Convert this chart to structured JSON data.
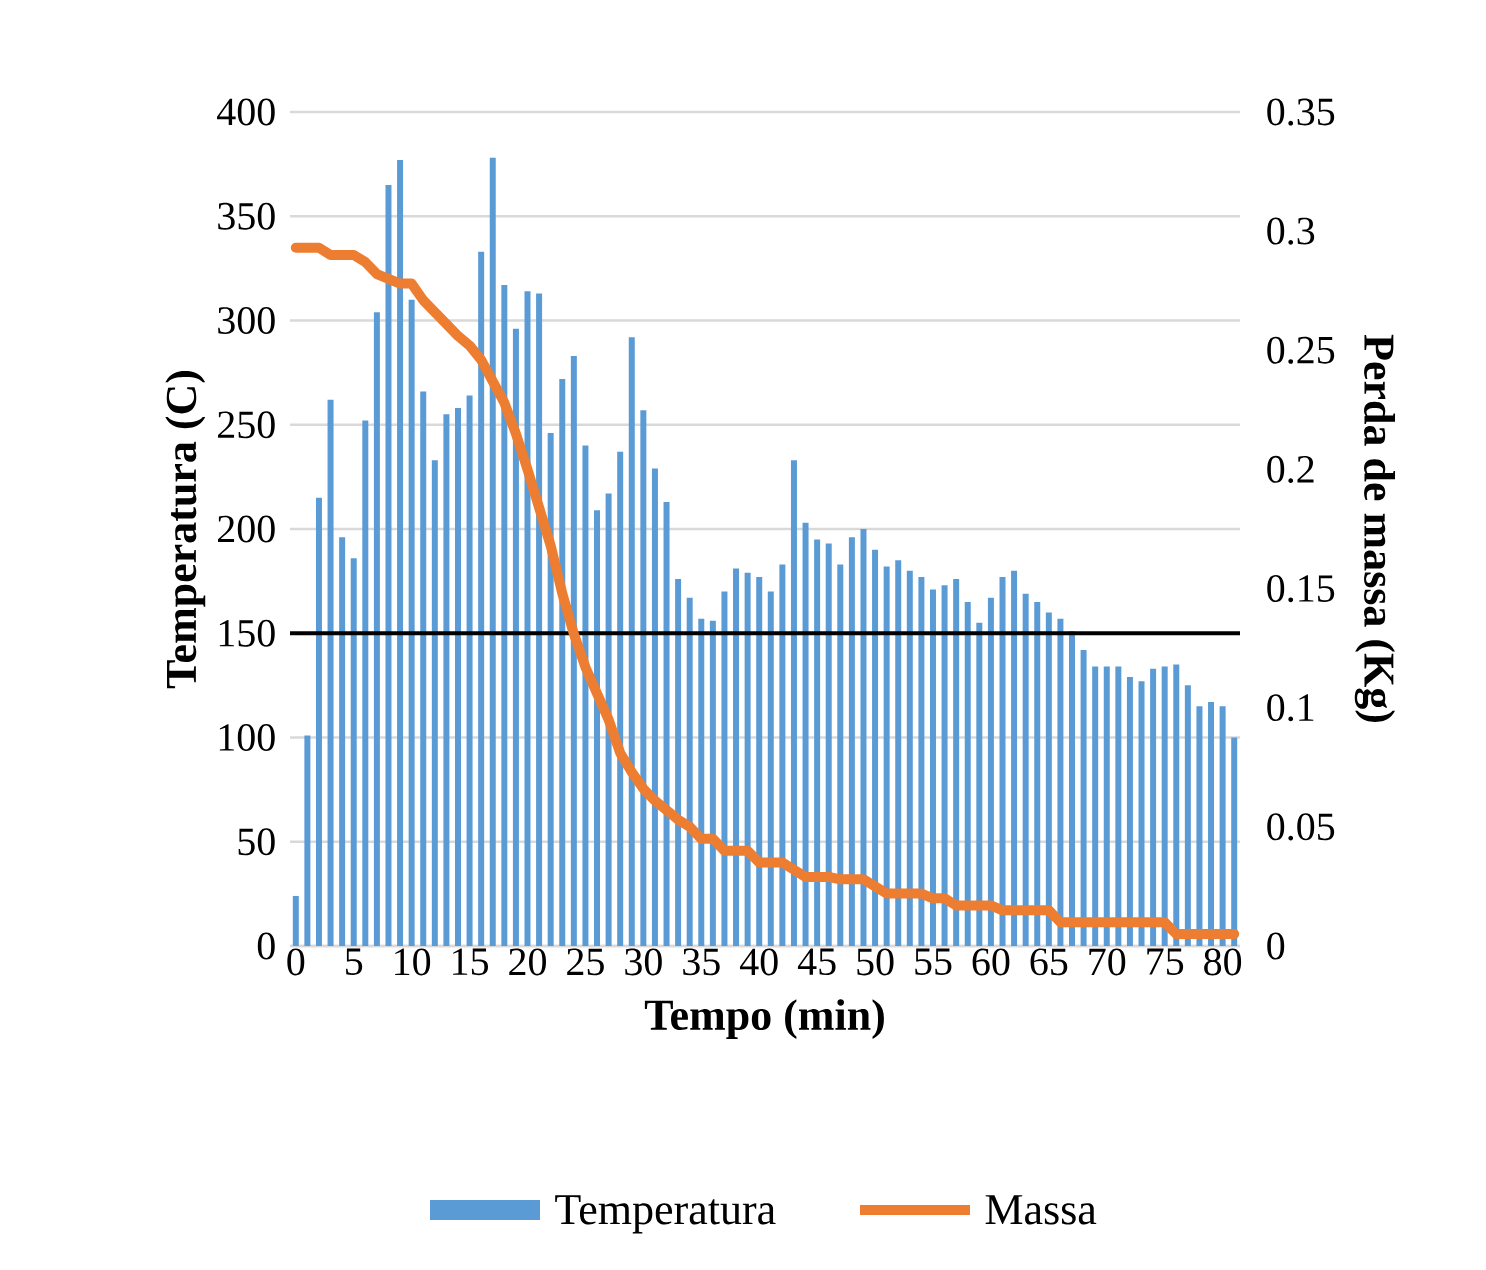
{
  "chart_data": {
    "type": "bar",
    "xlabel": "Tempo (min)",
    "ylabel": "Temperatura (C)",
    "y2label": "Perda de massa (Kg)",
    "x": [
      0,
      1,
      2,
      3,
      4,
      5,
      6,
      7,
      8,
      9,
      10,
      11,
      12,
      13,
      14,
      15,
      16,
      17,
      18,
      19,
      20,
      21,
      22,
      23,
      24,
      25,
      26,
      27,
      28,
      29,
      30,
      31,
      32,
      33,
      34,
      35,
      36,
      37,
      38,
      39,
      40,
      41,
      42,
      43,
      44,
      45,
      46,
      47,
      48,
      49,
      50,
      51,
      52,
      53,
      54,
      55,
      56,
      57,
      58,
      59,
      60,
      61,
      62,
      63,
      64,
      65,
      66,
      67,
      68,
      69,
      70,
      71,
      72,
      73,
      74,
      75,
      76,
      77,
      78,
      79,
      80,
      81
    ],
    "xlim": [
      -0.5,
      81.5
    ],
    "xticks": [
      0,
      5,
      10,
      15,
      20,
      25,
      30,
      35,
      40,
      45,
      50,
      55,
      60,
      65,
      70,
      75,
      80
    ],
    "ylim": [
      0,
      400
    ],
    "yticks": [
      0,
      50,
      100,
      150,
      200,
      250,
      300,
      350,
      400
    ],
    "y2lim": [
      0,
      0.35
    ],
    "y2ticks": [
      0,
      0.05,
      0.1,
      0.15,
      0.2,
      0.25,
      0.3,
      0.35
    ],
    "grid": "y",
    "legend": "bottom",
    "series": [
      {
        "name": "Temperatura",
        "color": "#5b9bd5",
        "values": [
          24,
          101,
          215,
          262,
          196,
          186,
          252,
          304,
          365,
          377,
          310,
          266,
          233,
          255,
          258,
          264,
          333,
          378,
          317,
          296,
          314,
          313,
          246,
          272,
          283,
          240,
          209,
          217,
          237,
          292,
          257,
          229,
          213,
          176,
          167,
          157,
          156,
          170,
          181,
          179,
          177,
          170,
          183,
          233,
          203,
          195,
          193,
          183,
          196,
          200,
          190,
          182,
          185,
          180,
          177,
          171,
          173,
          176,
          165,
          155,
          167,
          177,
          180,
          169,
          165,
          160,
          157,
          151,
          142,
          134,
          134,
          134,
          129,
          127,
          133,
          134,
          135,
          125,
          115,
          117,
          115,
          100
        ]
      },
      {
        "name": "Massa",
        "type": "line",
        "axis": "y2",
        "color": "#ed7d31",
        "x": [
          0,
          2,
          3,
          5,
          6,
          7,
          9,
          10,
          11,
          13,
          14,
          15,
          16,
          17,
          18,
          19,
          20,
          21,
          22,
          23,
          24,
          25,
          26,
          27,
          28,
          29,
          30,
          31,
          32,
          33,
          34,
          35,
          36,
          37,
          39,
          40,
          42,
          43,
          44,
          46,
          47,
          49,
          50,
          51,
          54,
          55,
          56,
          57,
          60,
          61,
          65,
          66,
          75,
          76,
          81
        ],
        "values": [
          0.293,
          0.293,
          0.29,
          0.29,
          0.287,
          0.282,
          0.278,
          0.278,
          0.271,
          0.261,
          0.256,
          0.252,
          0.246,
          0.237,
          0.228,
          0.215,
          0.2,
          0.184,
          0.168,
          0.148,
          0.131,
          0.117,
          0.106,
          0.095,
          0.081,
          0.073,
          0.066,
          0.061,
          0.057,
          0.053,
          0.05,
          0.045,
          0.045,
          0.04,
          0.04,
          0.035,
          0.035,
          0.032,
          0.029,
          0.029,
          0.028,
          0.028,
          0.025,
          0.022,
          0.022,
          0.02,
          0.02,
          0.017,
          0.017,
          0.015,
          0.015,
          0.01,
          0.01,
          0.005,
          0.005
        ]
      }
    ],
    "ref_lines": [
      {
        "axis": "y",
        "value": 150,
        "color": "#000000"
      }
    ]
  }
}
